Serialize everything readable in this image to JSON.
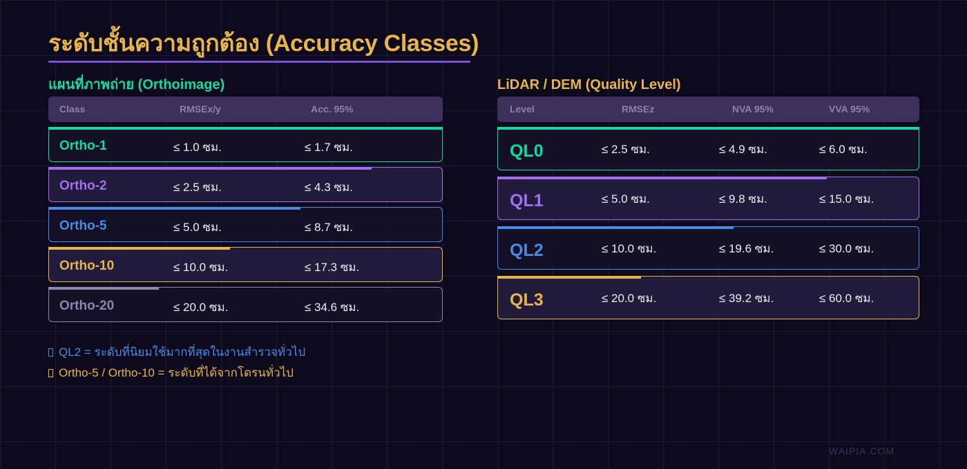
{
  "title": "ระดับชั้นความถูกต้อง (Accuracy Classes)",
  "colors": {
    "background": "#0d0a1e",
    "title": "#e8b54a",
    "underline": "#7c4dde",
    "green": "#10dba0",
    "purple": "#a070f0",
    "blue": "#4a8ae6",
    "gold": "#e8b54a",
    "gray": "#8e86ab"
  },
  "ortho": {
    "section_title": "แผนที่ภาพถ่าย (Orthoimage)",
    "headers": [
      "Class",
      "RMSEx/y",
      "Acc. 95%"
    ],
    "rows": [
      {
        "name": "Ortho-1",
        "rmse": "≤ 1.0 ซม.",
        "acc": "≤ 1.7 ซม.",
        "color": "#10dba0",
        "bar_pct": 100
      },
      {
        "name": "Ortho-2",
        "rmse": "≤ 2.5 ซม.",
        "acc": "≤ 4.3 ซม.",
        "color": "#a070f0",
        "bar_pct": 82
      },
      {
        "name": "Ortho-5",
        "rmse": "≤ 5.0 ซม.",
        "acc": "≤ 8.7 ซม.",
        "color": "#4a8ae6",
        "bar_pct": 64
      },
      {
        "name": "Ortho-10",
        "rmse": "≤ 10.0 ซม.",
        "acc": "≤ 17.3 ซม.",
        "color": "#e8b54a",
        "bar_pct": 46
      },
      {
        "name": "Ortho-20",
        "rmse": "≤ 20.0 ซม.",
        "acc": "≤ 34.6 ซม.",
        "color": "#8e86ab",
        "bar_pct": 28
      }
    ]
  },
  "lidar": {
    "section_title": "LiDAR / DEM (Quality Level)",
    "headers": [
      "Level",
      "RMSEz",
      "NVA 95%",
      "VVA 95%"
    ],
    "rows": [
      {
        "name": "QL0",
        "rmse": "≤ 2.5 ซม.",
        "nva": "≤ 4.9 ซม.",
        "vva": "≤ 6.0 ซม.",
        "color": "#10dba0",
        "bar_pct": 100
      },
      {
        "name": "QL1",
        "rmse": "≤ 5.0 ซม.",
        "nva": "≤ 9.8 ซม.",
        "vva": "≤ 15.0 ซม.",
        "color": "#a070f0",
        "bar_pct": 78
      },
      {
        "name": "QL2",
        "rmse": "≤ 10.0 ซม.",
        "nva": "≤ 19.6 ซม.",
        "vva": "≤ 30.0 ซม.",
        "color": "#4a8ae6",
        "bar_pct": 56
      },
      {
        "name": "QL3",
        "rmse": "≤ 20.0 ซม.",
        "nva": "≤ 39.2 ซม.",
        "vva": "≤ 60.0 ซม.",
        "color": "#e8b54a",
        "bar_pct": 34
      }
    ]
  },
  "notes": [
    {
      "prefix": "QL2 = ",
      "text": "ระดับที่นิยมใช้มากที่สุดในงานสำรวจทั่วไป",
      "color": "#4a8ae6"
    },
    {
      "prefix": "Ortho-5 / Ortho-10 = ",
      "text": "ระดับที่ได้จากโดรนทั่วไป",
      "color": "#e8b54a"
    }
  ],
  "watermark": "WAIPIA.COM"
}
